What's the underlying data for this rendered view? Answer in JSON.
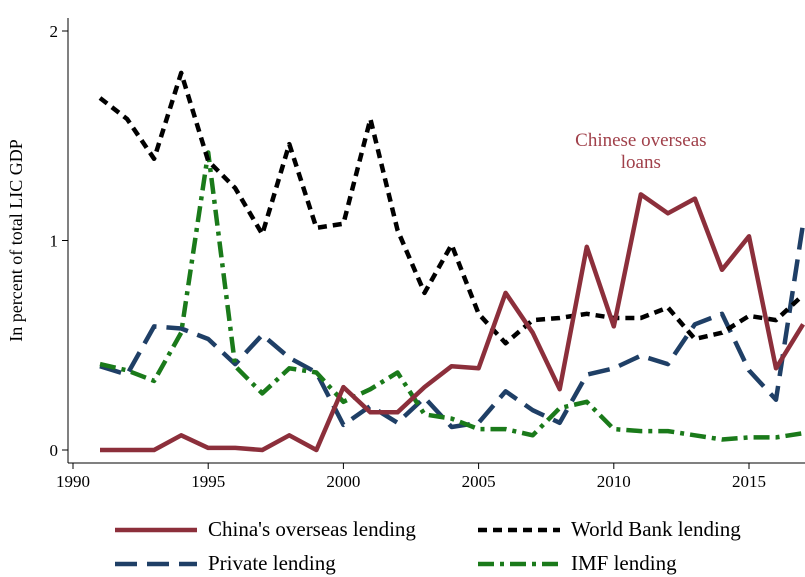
{
  "chart_data": {
    "type": "line",
    "title": "",
    "xlabel": "",
    "ylabel": "In percent of total LIC GDP",
    "xlim": [
      1989.6,
      2017
    ],
    "ylim": [
      -0.08,
      2.05
    ],
    "x_ticks": [
      1990,
      1995,
      2000,
      2005,
      2010,
      2015
    ],
    "y_ticks": [
      0,
      1,
      2
    ],
    "grid": false,
    "legend_position": "bottom",
    "annotation": {
      "lines": [
        "Chinese overseas",
        "loans"
      ],
      "x": 2011,
      "y": 1.45,
      "color": "#a0404a"
    },
    "series": [
      {
        "name": "China's overseas lending",
        "color": "#8c2f3b",
        "style": "solid",
        "x": [
          1991,
          1992,
          1993,
          1994,
          1995,
          1996,
          1997,
          1998,
          1999,
          2000,
          2001,
          2002,
          2003,
          2004,
          2005,
          2006,
          2007,
          2008,
          2009,
          2010,
          2011,
          2012,
          2013,
          2014,
          2015,
          2016,
          2017
        ],
        "values": [
          0,
          0,
          0,
          0.07,
          0.01,
          0.01,
          0,
          0.07,
          0,
          0.3,
          0.18,
          0.18,
          0.3,
          0.4,
          0.39,
          0.75,
          0.56,
          0.29,
          0.97,
          0.59,
          1.22,
          1.13,
          1.2,
          0.86,
          1.02,
          0.39,
          0.6
        ]
      },
      {
        "name": "World Bank lending",
        "color": "#000000",
        "style": "short-dash",
        "x": [
          1991,
          1992,
          1993,
          1994,
          1995,
          1996,
          1997,
          1998,
          1999,
          2000,
          2001,
          2002,
          2003,
          2004,
          2005,
          2006,
          2007,
          2008,
          2009,
          2010,
          2011,
          2012,
          2013,
          2014,
          2015,
          2016,
          2017
        ],
        "values": [
          1.68,
          1.58,
          1.39,
          1.8,
          1.38,
          1.25,
          1.03,
          1.46,
          1.06,
          1.08,
          1.58,
          1.05,
          0.75,
          0.98,
          0.65,
          0.51,
          0.62,
          0.63,
          0.65,
          0.63,
          0.63,
          0.68,
          0.53,
          0.56,
          0.64,
          0.62,
          0.74
        ]
      },
      {
        "name": "Private lending",
        "color": "#1f3f66",
        "style": "long-dash",
        "x": [
          1991,
          1992,
          1993,
          1994,
          1995,
          1996,
          1997,
          1998,
          1999,
          2000,
          2001,
          2002,
          2003,
          2004,
          2005,
          2006,
          2007,
          2008,
          2009,
          2010,
          2011,
          2012,
          2013,
          2014,
          2015,
          2016,
          2017
        ],
        "values": [
          0.4,
          0.36,
          0.59,
          0.58,
          0.53,
          0.41,
          0.55,
          0.44,
          0.37,
          0.12,
          0.21,
          0.13,
          0.25,
          0.11,
          0.13,
          0.28,
          0.19,
          0.13,
          0.36,
          0.39,
          0.45,
          0.41,
          0.6,
          0.65,
          0.38,
          0.24,
          1.08
        ]
      },
      {
        "name": "IMF lending",
        "color": "#1a7a1a",
        "style": "dash-dot",
        "x": [
          1991,
          1992,
          1993,
          1994,
          1995,
          1996,
          1997,
          1998,
          1999,
          2000,
          2001,
          2002,
          2003,
          2004,
          2005,
          2006,
          2007,
          2008,
          2009,
          2010,
          2011,
          2012,
          2013,
          2014,
          2015,
          2016,
          2017
        ],
        "values": [
          0.41,
          0.38,
          0.33,
          0.56,
          1.42,
          0.4,
          0.27,
          0.39,
          0.37,
          0.23,
          0.29,
          0.37,
          0.17,
          0.15,
          0.1,
          0.1,
          0.07,
          0.2,
          0.23,
          0.1,
          0.09,
          0.09,
          0.07,
          0.05,
          0.06,
          0.06,
          0.08
        ]
      }
    ]
  }
}
